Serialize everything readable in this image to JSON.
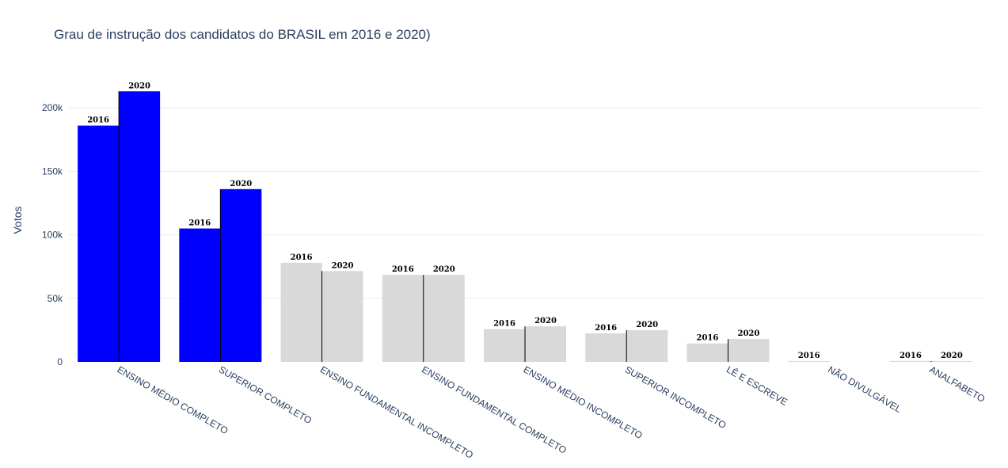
{
  "chart_data": {
    "type": "bar",
    "title": "Grau de instrução dos candidatos do BRASIL em 2016 e 2020)",
    "xlabel": "",
    "ylabel": "Votos",
    "ylim": [
      0,
      235000
    ],
    "yticks": [
      0,
      50000,
      100000,
      150000,
      200000
    ],
    "ytick_labels": [
      "0",
      "50k",
      "100k",
      "150k",
      "200k"
    ],
    "grid": true,
    "legend": "none",
    "categories": [
      "ENSINO MÉDIO COMPLETO",
      "SUPERIOR COMPLETO",
      "ENSINO FUNDAMENTAL INCOMPLETO",
      "ENSINO FUNDAMENTAL COMPLETO",
      "ENSINO MÉDIO INCOMPLETO",
      "SUPERIOR INCOMPLETO",
      "LÊ E ESCREVE",
      "NÃO DIVULGÁVEL",
      "ANALFABETO"
    ],
    "highlight_categories": [
      "ENSINO MÉDIO COMPLETO",
      "SUPERIOR COMPLETO"
    ],
    "colors": {
      "highlight": "#0000ff",
      "default": "#d9d9d9",
      "divider": "#000000"
    },
    "series": [
      {
        "bar_label": "2016",
        "values": [
          186000,
          105000,
          78000,
          68500,
          25800,
          22500,
          14500,
          600,
          700
        ]
      },
      {
        "bar_label": "2020",
        "values": [
          213000,
          136000,
          71500,
          68500,
          28000,
          25000,
          18000,
          0,
          600
        ]
      }
    ]
  }
}
